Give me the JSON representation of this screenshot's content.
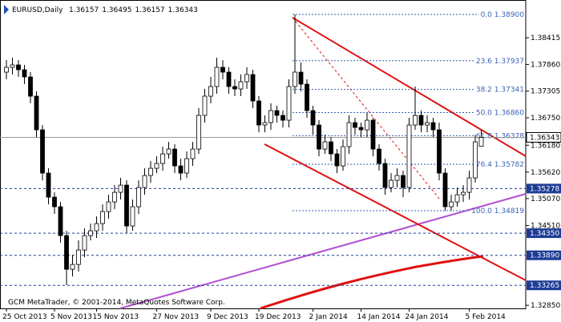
{
  "chart_data": {
    "type": "candlestick",
    "title": "EURUSD,Daily",
    "header_values": [
      1.36157,
      1.36495,
      1.36157,
      1.36343
    ],
    "footer": "GCM MetaTrader, © 2001-2014, MetaQuotes Software Corp.",
    "ylim": [
      1.32786,
      1.392
    ],
    "yticks": [
      1.38415,
      {
        "value": 1.3786,
        "label": "1.37860"
      },
      1.37305,
      {
        "value": 1.3675,
        "label": "1.36750"
      },
      {
        "value": 1.3618,
        "label": "1.36180"
      },
      {
        "value": 1.3562,
        "label": "1.35620"
      },
      {
        "value": 1.3507,
        "label": "1.35070"
      },
      {
        "value": 1.3451,
        "label": "1.34510"
      },
      {
        "value": 1.3285,
        "label": "1.32850"
      }
    ],
    "current_price": 1.36343,
    "levels": [
      1.35278,
      {
        "value": 1.3435,
        "label": "1.34350"
      },
      {
        "value": 1.3389,
        "label": "1.33890"
      },
      1.33265
    ],
    "fib_levels": [
      {
        "ratio": "0.0",
        "value": 1.389,
        "label": "1.38900"
      },
      {
        "ratio": "23.6",
        "value": 1.37937,
        "label": "1.37937"
      },
      {
        "ratio": "38.2",
        "value": 1.37341,
        "label": "1.37341"
      },
      {
        "ratio": "50.0",
        "value": 1.3686,
        "label": "1.36860"
      },
      {
        "ratio": "61.8",
        "value": 1.36378,
        "label": "1.36378"
      },
      {
        "ratio": "76.4",
        "value": 1.35782,
        "label": "1.35782"
      },
      {
        "ratio": "100.0",
        "value": 1.34819,
        "label": "1.34819"
      }
    ],
    "categories": [
      "25 Oct 2013",
      null,
      null,
      null,
      null,
      null,
      null,
      null,
      "5 Nov 2013",
      null,
      null,
      null,
      null,
      null,
      null,
      "15 Nov 2013",
      null,
      null,
      null,
      null,
      null,
      null,
      null,
      null,
      null,
      "27 Nov 2013",
      null,
      null,
      null,
      null,
      null,
      null,
      null,
      null,
      "9 Dec 2013",
      null,
      null,
      null,
      null,
      null,
      null,
      null,
      "19 Dec 2013",
      null,
      null,
      null,
      null,
      null,
      null,
      null,
      null,
      "2 Jan 2014",
      null,
      null,
      null,
      null,
      null,
      null,
      null,
      "14 Jan 2014",
      null,
      null,
      null,
      null,
      null,
      null,
      null,
      "24 Jan 2014",
      null,
      null,
      null,
      null,
      null,
      null,
      null,
      null,
      null,
      "5 Feb 2014",
      null,
      null
    ],
    "open": [
      1.377,
      1.378,
      1.3785,
      1.3775,
      1.376,
      1.372,
      1.365,
      1.356,
      1.351,
      1.349,
      1.343,
      1.336,
      1.337,
      1.34,
      1.343,
      1.344,
      1.3455,
      1.348,
      1.35,
      1.352,
      1.3535,
      1.345,
      1.349,
      1.353,
      1.3555,
      1.357,
      1.358,
      1.36,
      1.361,
      1.3575,
      1.356,
      1.359,
      1.361,
      1.368,
      1.372,
      1.374,
      1.378,
      1.377,
      1.374,
      1.3735,
      1.375,
      1.3765,
      1.371,
      1.366,
      1.3665,
      1.369,
      1.368,
      1.367,
      1.374,
      1.377,
      1.3745,
      1.369,
      1.366,
      1.361,
      1.3625,
      1.36,
      1.3575,
      1.3615,
      1.3665,
      1.3655,
      1.365,
      1.367,
      1.361,
      1.358,
      1.353,
      1.3545,
      1.3555,
      1.353,
      1.366,
      1.368,
      1.366,
      1.3665,
      1.365,
      1.356,
      1.349,
      1.35,
      1.3515,
      1.352,
      1.355,
      1.36157
    ],
    "high": [
      1.3795,
      1.38,
      1.3795,
      1.3785,
      1.377,
      1.373,
      1.366,
      1.357,
      1.352,
      1.35,
      1.344,
      1.339,
      1.342,
      1.3445,
      1.3455,
      1.347,
      1.3495,
      1.3515,
      1.3535,
      1.355,
      1.3545,
      1.3505,
      1.3545,
      1.357,
      1.3585,
      1.3595,
      1.3615,
      1.3625,
      1.362,
      1.359,
      1.3605,
      1.3625,
      1.3695,
      1.3735,
      1.376,
      1.38,
      1.3795,
      1.378,
      1.3755,
      1.3765,
      1.378,
      1.3775,
      1.372,
      1.368,
      1.3705,
      1.37,
      1.369,
      1.3755,
      1.389,
      1.379,
      1.3755,
      1.37,
      1.367,
      1.364,
      1.3635,
      1.361,
      1.363,
      1.368,
      1.3675,
      1.3665,
      1.3685,
      1.3675,
      1.362,
      1.359,
      1.356,
      1.357,
      1.3565,
      1.3675,
      1.374,
      1.369,
      1.368,
      1.3675,
      1.3665,
      1.357,
      1.3515,
      1.353,
      1.3535,
      1.3565,
      1.364,
      1.36495
    ],
    "low": [
      1.3755,
      1.3765,
      1.376,
      1.3745,
      1.3705,
      1.3635,
      1.3545,
      1.3495,
      1.3475,
      1.3415,
      1.3327,
      1.3345,
      1.3355,
      1.3385,
      1.342,
      1.3425,
      1.344,
      1.3465,
      1.3485,
      1.3505,
      1.3435,
      1.344,
      1.3475,
      1.3515,
      1.354,
      1.356,
      1.3565,
      1.359,
      1.356,
      1.3545,
      1.355,
      1.3575,
      1.36,
      1.3665,
      1.3705,
      1.3725,
      1.3755,
      1.3725,
      1.372,
      1.372,
      1.3735,
      1.3695,
      1.3645,
      1.3645,
      1.365,
      1.3665,
      1.3655,
      1.3655,
      1.3725,
      1.373,
      1.3675,
      1.364,
      1.3595,
      1.36,
      1.3585,
      1.356,
      1.3565,
      1.36,
      1.364,
      1.3635,
      1.3635,
      1.3595,
      1.3565,
      1.3515,
      1.352,
      1.353,
      1.351,
      1.352,
      1.365,
      1.3645,
      1.3645,
      1.3635,
      1.3545,
      1.3482,
      1.3482,
      1.349,
      1.35,
      1.3505,
      1.354,
      1.36157
    ],
    "close": [
      1.378,
      1.3785,
      1.3775,
      1.376,
      1.372,
      1.365,
      1.356,
      1.351,
      1.349,
      1.343,
      1.336,
      1.337,
      1.34,
      1.343,
      1.344,
      1.3455,
      1.348,
      1.35,
      1.352,
      1.3535,
      1.345,
      1.349,
      1.353,
      1.3555,
      1.357,
      1.358,
      1.36,
      1.361,
      1.3575,
      1.356,
      1.359,
      1.361,
      1.368,
      1.372,
      1.374,
      1.378,
      1.377,
      1.374,
      1.3735,
      1.375,
      1.3765,
      1.371,
      1.366,
      1.3665,
      1.369,
      1.368,
      1.367,
      1.374,
      1.377,
      1.3745,
      1.369,
      1.366,
      1.361,
      1.3625,
      1.36,
      1.3575,
      1.3615,
      1.3665,
      1.3655,
      1.365,
      1.367,
      1.361,
      1.358,
      1.353,
      1.3545,
      1.3555,
      1.353,
      1.366,
      1.368,
      1.366,
      1.3665,
      1.365,
      1.356,
      1.349,
      1.35,
      1.3515,
      1.352,
      1.355,
      1.3625,
      1.36343
    ]
  }
}
